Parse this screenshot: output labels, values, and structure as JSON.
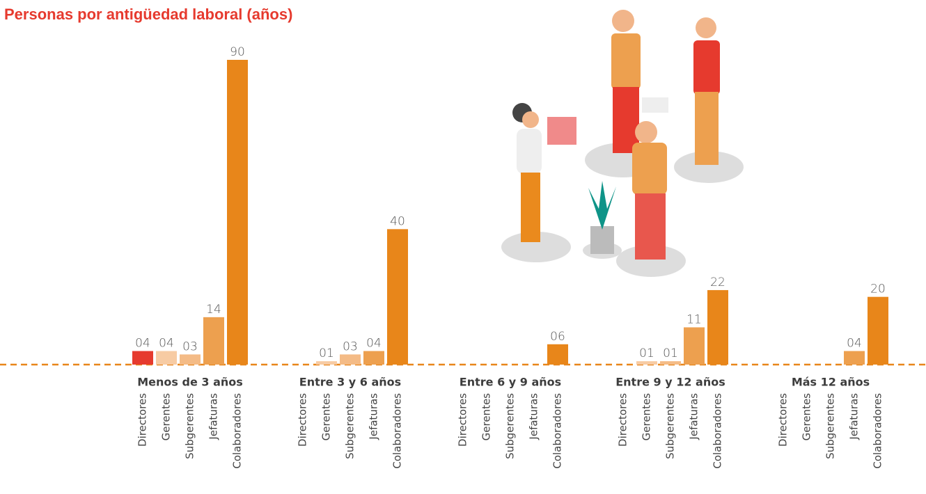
{
  "chart_data": {
    "type": "bar",
    "title": "Personas por antigüedad laboral (años)",
    "categories": [
      "Menos de 3 años",
      "Entre 3 y 6 años",
      "Entre 6 y 9 años",
      "Entre 9 y 12 años",
      "Más 12 años"
    ],
    "series": [
      {
        "name": "Directores",
        "color": "#e63a2e",
        "values": [
          4,
          null,
          null,
          null,
          null
        ],
        "value_labels": [
          "04",
          null,
          null,
          null,
          null
        ]
      },
      {
        "name": "Gerentes",
        "color": "#f7cba3",
        "values": [
          4,
          1,
          null,
          1,
          null
        ],
        "value_labels": [
          "04",
          "01",
          null,
          "01",
          null
        ]
      },
      {
        "name": "Subgerentes",
        "color": "#f4bb86",
        "values": [
          3,
          3,
          null,
          1,
          null
        ],
        "value_labels": [
          "03",
          "03",
          null,
          "01",
          null
        ]
      },
      {
        "name": "Jefaturas",
        "color": "#eda04f",
        "values": [
          14,
          4,
          null,
          11,
          4
        ],
        "value_labels": [
          "14",
          "04",
          null,
          "11",
          "04"
        ]
      },
      {
        "name": "Colaboradores",
        "color": "#e8861a",
        "values": [
          90,
          40,
          6,
          22,
          20
        ],
        "value_labels": [
          "90",
          "40",
          "06",
          "22",
          "20"
        ]
      }
    ]
  }
}
